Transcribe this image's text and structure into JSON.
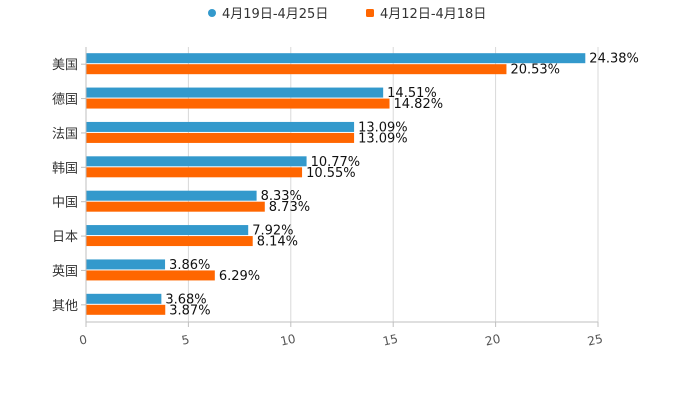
{
  "chart_data": {
    "type": "bar",
    "orientation": "horizontal",
    "title": "",
    "xlabel": "",
    "ylabel": "",
    "categories": [
      "美国",
      "德国",
      "法国",
      "韩国",
      "中国",
      "日本",
      "英国",
      "其他"
    ],
    "series": [
      {
        "name": "4月19日-4月25日",
        "color": "#3399cc",
        "values": [
          24.38,
          14.51,
          13.09,
          10.77,
          8.33,
          7.92,
          3.86,
          3.68
        ],
        "labels": [
          "24.38%",
          "14.51%",
          "13.09%",
          "10.77%",
          "8.33%",
          "7.92%",
          "3.86%",
          "3.68%"
        ]
      },
      {
        "name": "4月12日-4月18日",
        "color": "#ff6600",
        "values": [
          20.53,
          14.82,
          13.09,
          10.55,
          8.73,
          8.14,
          6.29,
          3.87
        ],
        "labels": [
          "20.53%",
          "14.82%",
          "13.09%",
          "10.55%",
          "8.73%",
          "8.14%",
          "6.29%",
          "3.87%"
        ]
      }
    ],
    "xlim": [
      0,
      25
    ],
    "xticks": [
      "0",
      "5",
      "10",
      "15",
      "20",
      "25"
    ],
    "grid": true,
    "legend_position": "top-center"
  }
}
